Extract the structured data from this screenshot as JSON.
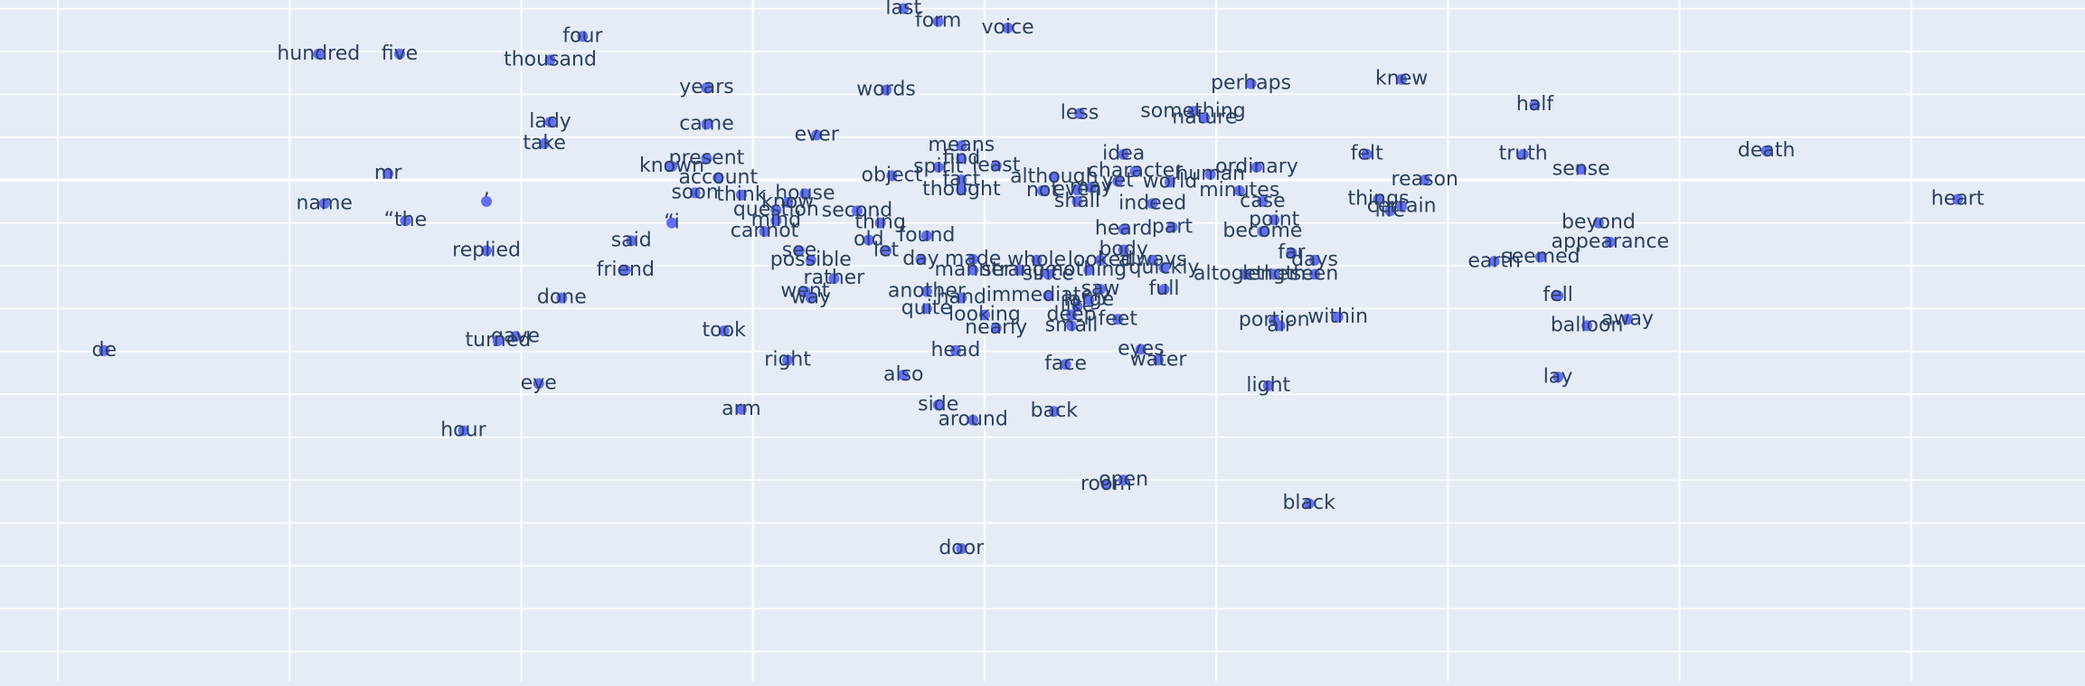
{
  "chart_data": {
    "type": "scatter",
    "title": "",
    "xlabel": "",
    "ylabel": "",
    "grid": true,
    "legend": "none",
    "xlim": [
      -0.5,
      17.5
    ],
    "ylim": [
      -11.7,
      4.2
    ],
    "colors": {
      "background": "#e5ecf6",
      "gridline": "#ffffff",
      "marker": "#636efa",
      "text": "#2a3f5f"
    },
    "points": [
      {
        "label": "last",
        "x": 7.3,
        "y": 4.0
      },
      {
        "label": "form",
        "x": 7.6,
        "y": 3.7
      },
      {
        "label": "voice",
        "x": 8.2,
        "y": 3.55
      },
      {
        "label": "four",
        "x": 4.53,
        "y": 3.35
      },
      {
        "label": "hundred",
        "x": 2.25,
        "y": 2.94
      },
      {
        "label": "five",
        "x": 2.95,
        "y": 2.94
      },
      {
        "label": "thousand",
        "x": 4.25,
        "y": 2.8
      },
      {
        "label": "years",
        "x": 5.6,
        "y": 2.15
      },
      {
        "label": "words",
        "x": 7.15,
        "y": 2.1
      },
      {
        "label": "perhaps",
        "x": 10.3,
        "y": 2.25
      },
      {
        "label": "knew",
        "x": 11.6,
        "y": 2.35
      },
      {
        "label": "half",
        "x": 12.75,
        "y": 1.75
      },
      {
        "label": "lady",
        "x": 4.25,
        "y": 1.35
      },
      {
        "label": "came",
        "x": 5.6,
        "y": 1.3
      },
      {
        "label": "less",
        "x": 8.82,
        "y": 1.55
      },
      {
        "label": "something",
        "x": 9.8,
        "y": 1.6
      },
      {
        "label": "nature",
        "x": 9.9,
        "y": 1.45
      },
      {
        "label": "ever",
        "x": 6.55,
        "y": 1.05
      },
      {
        "label": "take",
        "x": 4.2,
        "y": 0.85
      },
      {
        "label": "means",
        "x": 7.8,
        "y": 0.8
      },
      {
        "label": "idea",
        "x": 9.2,
        "y": 0.6
      },
      {
        "label": "felt",
        "x": 11.3,
        "y": 0.6
      },
      {
        "label": "truth",
        "x": 12.65,
        "y": 0.6
      },
      {
        "label": "death",
        "x": 14.75,
        "y": 0.68
      },
      {
        "label": "present",
        "x": 5.6,
        "y": 0.5
      },
      {
        "label": "find",
        "x": 7.8,
        "y": 0.5
      },
      {
        "label": "known",
        "x": 5.3,
        "y": 0.32
      },
      {
        "label": "spirit",
        "x": 7.6,
        "y": 0.3
      },
      {
        "label": "least",
        "x": 8.1,
        "y": 0.33
      },
      {
        "label": "ordinary",
        "x": 10.35,
        "y": 0.3
      },
      {
        "label": "sense",
        "x": 13.15,
        "y": 0.25
      },
      {
        "label": "mr",
        "x": 2.85,
        "y": 0.15
      },
      {
        "label": "account",
        "x": 5.7,
        "y": 0.05
      },
      {
        "label": "object",
        "x": 7.2,
        "y": 0.1
      },
      {
        "label": "character",
        "x": 9.3,
        "y": 0.2
      },
      {
        "label": "human",
        "x": 9.95,
        "y": 0.13
      },
      {
        "label": "although",
        "x": 8.6,
        "y": 0.07
      },
      {
        "label": "reason",
        "x": 11.8,
        "y": 0.0
      },
      {
        "label": "fact",
        "x": 7.8,
        "y": 0.0
      },
      {
        "label": "soon",
        "x": 5.5,
        "y": -0.3
      },
      {
        "label": "think",
        "x": 5.9,
        "y": -0.35
      },
      {
        "label": "house",
        "x": 6.45,
        "y": -0.32
      },
      {
        "label": "yet",
        "x": 9.15,
        "y": -0.03
      },
      {
        "label": "world",
        "x": 9.6,
        "y": -0.05
      },
      {
        "label": "may",
        "x": 8.92,
        "y": -0.17
      },
      {
        "label": "thought",
        "x": 7.8,
        "y": -0.23
      },
      {
        "label": "not",
        "x": 8.5,
        "y": -0.25
      },
      {
        "label": "even",
        "x": 8.8,
        "y": -0.23
      },
      {
        "label": "minutes",
        "x": 10.2,
        "y": -0.25
      },
      {
        "label": "know",
        "x": 6.3,
        "y": -0.52
      },
      {
        "label": "name",
        "x": 2.3,
        "y": -0.55
      },
      {
        "label": "’",
        "x": 3.7,
        "y": -0.5
      },
      {
        "label": "things",
        "x": 11.4,
        "y": -0.45
      },
      {
        "label": "heart",
        "x": 16.4,
        "y": -0.45
      },
      {
        "label": "shall",
        "x": 8.8,
        "y": -0.5
      },
      {
        "label": "indeed",
        "x": 9.45,
        "y": -0.55
      },
      {
        "label": "case",
        "x": 10.4,
        "y": -0.5
      },
      {
        "label": "question",
        "x": 6.2,
        "y": -0.7
      },
      {
        "label": "second",
        "x": 6.9,
        "y": -0.72
      },
      {
        "label": "life",
        "x": 11.5,
        "y": -0.72
      },
      {
        "label": "certain",
        "x": 11.6,
        "y": -0.62
      },
      {
        "label": "“the",
        "x": 3.0,
        "y": -0.95
      },
      {
        "label": "mind",
        "x": 6.2,
        "y": -0.95
      },
      {
        "label": "thing",
        "x": 7.1,
        "y": -1.0
      },
      {
        "label": "point",
        "x": 10.5,
        "y": -0.93
      },
      {
        "label": "“i",
        "x": 5.3,
        "y": -1.0
      },
      {
        "label": "cannot",
        "x": 6.1,
        "y": -1.2
      },
      {
        "label": "part",
        "x": 9.62,
        "y": -1.1
      },
      {
        "label": "heard",
        "x": 9.2,
        "y": -1.15
      },
      {
        "label": "beyond",
        "x": 13.3,
        "y": -1.0
      },
      {
        "label": "become",
        "x": 10.4,
        "y": -1.2
      },
      {
        "label": "said",
        "x": 4.95,
        "y": -1.42
      },
      {
        "label": "old",
        "x": 7.0,
        "y": -1.4
      },
      {
        "label": "found",
        "x": 7.5,
        "y": -1.3
      },
      {
        "label": "appearance",
        "x": 13.4,
        "y": -1.45
      },
      {
        "label": "replied",
        "x": 3.7,
        "y": -1.65
      },
      {
        "label": "see",
        "x": 6.4,
        "y": -1.65
      },
      {
        "label": "let",
        "x": 7.15,
        "y": -1.65
      },
      {
        "label": "body",
        "x": 9.2,
        "y": -1.63
      },
      {
        "label": "far",
        "x": 10.65,
        "y": -1.7
      },
      {
        "label": "possible",
        "x": 6.5,
        "y": -1.87
      },
      {
        "label": "day",
        "x": 7.45,
        "y": -1.85
      },
      {
        "label": "made",
        "x": 7.9,
        "y": -1.85
      },
      {
        "label": "whole",
        "x": 8.45,
        "y": -1.87
      },
      {
        "label": "looked",
        "x": 9.0,
        "y": -1.87
      },
      {
        "label": "always",
        "x": 9.45,
        "y": -1.87
      },
      {
        "label": "days",
        "x": 10.85,
        "y": -1.87
      },
      {
        "label": "earth",
        "x": 12.4,
        "y": -1.9
      },
      {
        "label": "seemed",
        "x": 12.8,
        "y": -1.8
      },
      {
        "label": "friend",
        "x": 4.9,
        "y": -2.1
      },
      {
        "label": "manner",
        "x": 7.9,
        "y": -2.1
      },
      {
        "label": "strange",
        "x": 8.3,
        "y": -2.1
      },
      {
        "label": "since",
        "x": 8.55,
        "y": -2.2
      },
      {
        "label": "nothing",
        "x": 8.9,
        "y": -2.1
      },
      {
        "label": "quickly",
        "x": 9.55,
        "y": -2.05
      },
      {
        "label": "altogether",
        "x": 10.25,
        "y": -2.2
      },
      {
        "label": "length",
        "x": 10.5,
        "y": -2.2
      },
      {
        "label": "seen",
        "x": 10.85,
        "y": -2.2
      },
      {
        "label": "rather",
        "x": 6.7,
        "y": -2.3
      },
      {
        "label": "went",
        "x": 6.45,
        "y": -2.6
      },
      {
        "label": "way",
        "x": 6.5,
        "y": -2.75
      },
      {
        "label": "another",
        "x": 7.5,
        "y": -2.6
      },
      {
        "label": "hand",
        "x": 7.8,
        "y": -2.75
      },
      {
        "label": "immediately",
        "x": 8.55,
        "y": -2.7
      },
      {
        "label": "saw",
        "x": 9.0,
        "y": -2.55
      },
      {
        "label": "full",
        "x": 9.55,
        "y": -2.55
      },
      {
        "label": "like",
        "x": 8.8,
        "y": -2.95
      },
      {
        "label": "large",
        "x": 8.9,
        "y": -2.8
      },
      {
        "label": "fell",
        "x": 12.95,
        "y": -2.7
      },
      {
        "label": "done",
        "x": 4.35,
        "y": -2.75
      },
      {
        "label": "quite",
        "x": 7.5,
        "y": -3.0
      },
      {
        "label": "looking",
        "x": 8.0,
        "y": -3.15
      },
      {
        "label": "deep",
        "x": 8.75,
        "y": -3.15
      },
      {
        "label": "feet",
        "x": 9.15,
        "y": -3.25
      },
      {
        "label": "within",
        "x": 11.05,
        "y": -3.2
      },
      {
        "label": "away",
        "x": 13.55,
        "y": -3.25
      },
      {
        "label": "portion",
        "x": 10.5,
        "y": -3.28
      },
      {
        "label": "air",
        "x": 10.55,
        "y": -3.4
      },
      {
        "label": "balloon",
        "x": 13.2,
        "y": -3.4
      },
      {
        "label": "nearly",
        "x": 8.1,
        "y": -3.45
      },
      {
        "label": "small",
        "x": 8.75,
        "y": -3.4
      },
      {
        "label": "took",
        "x": 5.75,
        "y": -3.52
      },
      {
        "label": "gave",
        "x": 3.95,
        "y": -3.65
      },
      {
        "label": "turned",
        "x": 3.8,
        "y": -3.75
      },
      {
        "label": "de",
        "x": 0.4,
        "y": -3.98
      },
      {
        "label": "head",
        "x": 7.75,
        "y": -3.98
      },
      {
        "label": "eyes",
        "x": 9.35,
        "y": -3.95
      },
      {
        "label": "right",
        "x": 6.3,
        "y": -4.2
      },
      {
        "label": "water",
        "x": 9.5,
        "y": -4.2
      },
      {
        "label": "face",
        "x": 8.7,
        "y": -4.3
      },
      {
        "label": "also",
        "x": 7.3,
        "y": -4.55
      },
      {
        "label": "lay",
        "x": 12.95,
        "y": -4.6
      },
      {
        "label": "eye",
        "x": 4.15,
        "y": -4.75
      },
      {
        "label": "light",
        "x": 10.45,
        "y": -4.8
      },
      {
        "label": "arm",
        "x": 5.9,
        "y": -5.35
      },
      {
        "label": "side",
        "x": 7.6,
        "y": -5.25
      },
      {
        "label": "back",
        "x": 8.6,
        "y": -5.4
      },
      {
        "label": "around",
        "x": 7.9,
        "y": -5.6
      },
      {
        "label": "hour",
        "x": 3.5,
        "y": -5.85
      },
      {
        "label": "room",
        "x": 9.05,
        "y": -7.1
      },
      {
        "label": "open",
        "x": 9.2,
        "y": -7.0
      },
      {
        "label": "black",
        "x": 10.8,
        "y": -7.55
      },
      {
        "label": "door",
        "x": 7.8,
        "y": -8.6
      }
    ]
  }
}
